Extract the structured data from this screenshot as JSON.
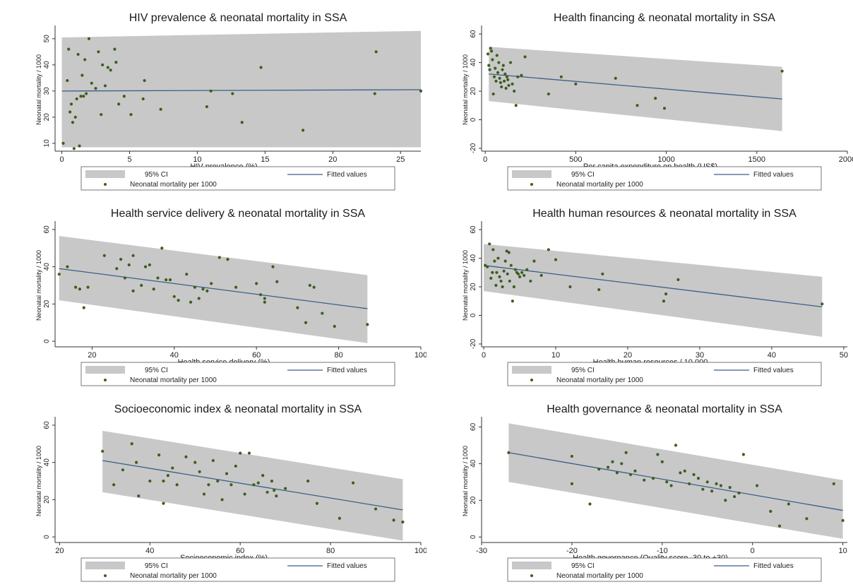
{
  "colors": {
    "ci_band": "#c8c8c8",
    "fit_line": "#3a5f86",
    "points": "#3d5e1e",
    "axis": "#333333"
  },
  "legend": {
    "ci": "95% CI",
    "fit": "Fitted values",
    "points": "Neonatal mortality per 1000"
  },
  "chart_data": [
    {
      "type": "scatter",
      "title": "HIV prevalence & neonatal mortality in SSA",
      "xlabel": "HIV prevalence (%)",
      "ylabel": "Neonatal mortality / 1000",
      "xlim": [
        -0.5,
        26.5
      ],
      "ylim": [
        7,
        54
      ],
      "xticks": [
        0,
        5,
        10,
        15,
        20,
        25
      ],
      "yticks": [
        10,
        20,
        30,
        40,
        50
      ],
      "ci_band": {
        "x": [
          0,
          26.5
        ],
        "lower": [
          8.5,
          8.5
        ],
        "upper": [
          50.5,
          53
        ]
      },
      "fit": {
        "x": [
          0,
          26.5
        ],
        "y": [
          30,
          30.5
        ]
      },
      "points": [
        [
          0.1,
          10
        ],
        [
          0.4,
          34
        ],
        [
          0.5,
          46
        ],
        [
          0.6,
          22
        ],
        [
          0.7,
          25
        ],
        [
          0.8,
          18
        ],
        [
          0.9,
          8
        ],
        [
          1,
          20
        ],
        [
          1.1,
          27
        ],
        [
          1.2,
          44
        ],
        [
          1.3,
          9
        ],
        [
          1.4,
          28
        ],
        [
          1.5,
          36
        ],
        [
          1.6,
          28
        ],
        [
          1.8,
          29
        ],
        [
          1.7,
          42
        ],
        [
          2,
          50
        ],
        [
          2.2,
          33
        ],
        [
          2.5,
          31
        ],
        [
          2.7,
          45
        ],
        [
          2.9,
          21
        ],
        [
          3,
          40
        ],
        [
          3.2,
          32
        ],
        [
          3.4,
          39
        ],
        [
          3.6,
          38
        ],
        [
          3.9,
          46
        ],
        [
          4,
          41
        ],
        [
          4.2,
          25
        ],
        [
          4.6,
          28
        ],
        [
          5.1,
          21
        ],
        [
          6.1,
          34
        ],
        [
          6,
          27
        ],
        [
          7.3,
          23
        ],
        [
          10.7,
          24
        ],
        [
          11,
          30
        ],
        [
          12.6,
          29
        ],
        [
          13.3,
          18
        ],
        [
          14.7,
          39
        ],
        [
          17.8,
          15
        ],
        [
          23.2,
          45
        ],
        [
          23.1,
          29
        ],
        [
          26.5,
          30
        ]
      ]
    },
    {
      "type": "scatter",
      "title": "Health financing & neonatal mortality in SSA",
      "xlabel": "Per capita expenditure on health (US$)",
      "ylabel": "Neonatal mortality / 1000",
      "xlim": [
        -20,
        2000
      ],
      "ylim": [
        -22,
        64
      ],
      "xticks": [
        0,
        500,
        1000,
        1500,
        2000
      ],
      "yticks": [
        -20,
        0,
        20,
        40,
        60
      ],
      "ci_band": {
        "x": [
          20,
          1640
        ],
        "lower": [
          13,
          -8
        ],
        "upper": [
          51,
          37
        ]
      },
      "fit": {
        "x": [
          20,
          1640
        ],
        "y": [
          32,
          14.5
        ]
      },
      "points": [
        [
          15,
          46
        ],
        [
          20,
          38
        ],
        [
          25,
          35
        ],
        [
          30,
          50
        ],
        [
          35,
          48
        ],
        [
          40,
          42
        ],
        [
          45,
          18
        ],
        [
          50,
          30
        ],
        [
          55,
          36
        ],
        [
          60,
          27
        ],
        [
          65,
          45
        ],
        [
          70,
          33
        ],
        [
          75,
          40
        ],
        [
          80,
          29
        ],
        [
          85,
          26
        ],
        [
          90,
          23
        ],
        [
          95,
          35
        ],
        [
          100,
          38
        ],
        [
          105,
          27
        ],
        [
          110,
          32
        ],
        [
          115,
          22
        ],
        [
          120,
          30
        ],
        [
          125,
          28
        ],
        [
          130,
          24
        ],
        [
          140,
          40
        ],
        [
          150,
          25
        ],
        [
          160,
          20
        ],
        [
          170,
          10
        ],
        [
          180,
          30
        ],
        [
          200,
          31
        ],
        [
          220,
          44
        ],
        [
          350,
          18
        ],
        [
          420,
          30
        ],
        [
          500,
          25
        ],
        [
          720,
          29
        ],
        [
          840,
          10
        ],
        [
          940,
          15
        ],
        [
          990,
          8
        ],
        [
          1640,
          34
        ]
      ]
    },
    {
      "type": "scatter",
      "title": "Health service delivery & neonatal mortality in SSA",
      "xlabel": "Health service delivery (%)",
      "ylabel": "Neonatal mortality / 1000",
      "xlim": [
        11,
        100
      ],
      "ylim": [
        -3,
        63
      ],
      "xticks": [
        20,
        40,
        60,
        80,
        100
      ],
      "yticks": [
        0,
        20,
        40,
        60
      ],
      "ci_band": {
        "x": [
          12,
          87
        ],
        "lower": [
          22,
          -1
        ],
        "upper": [
          56.5,
          35.5
        ]
      },
      "fit": {
        "x": [
          12,
          87
        ],
        "y": [
          39,
          17.5
        ]
      },
      "points": [
        [
          12,
          36
        ],
        [
          14,
          40
        ],
        [
          16,
          29
        ],
        [
          17,
          28
        ],
        [
          18,
          18
        ],
        [
          19,
          29
        ],
        [
          23,
          46
        ],
        [
          26,
          39
        ],
        [
          27,
          44
        ],
        [
          28,
          34
        ],
        [
          29,
          41
        ],
        [
          30,
          27
        ],
        [
          30,
          46
        ],
        [
          32,
          30
        ],
        [
          33,
          40
        ],
        [
          34,
          41
        ],
        [
          35,
          28
        ],
        [
          36,
          34
        ],
        [
          37,
          50
        ],
        [
          38,
          33
        ],
        [
          39,
          33
        ],
        [
          40,
          24
        ],
        [
          41,
          22
        ],
        [
          43,
          36
        ],
        [
          44,
          21
        ],
        [
          45,
          29
        ],
        [
          46,
          23
        ],
        [
          47,
          28
        ],
        [
          48,
          27
        ],
        [
          49,
          31
        ],
        [
          51,
          45
        ],
        [
          53,
          44
        ],
        [
          55,
          29
        ],
        [
          60,
          31
        ],
        [
          61,
          25
        ],
        [
          62,
          23
        ],
        [
          62,
          21
        ],
        [
          64,
          40
        ],
        [
          65,
          32
        ],
        [
          70,
          18
        ],
        [
          72,
          10
        ],
        [
          73,
          30
        ],
        [
          74,
          29
        ],
        [
          76,
          15
        ],
        [
          79,
          8
        ],
        [
          87,
          9
        ]
      ]
    },
    {
      "type": "scatter",
      "title": "Health human resources & neonatal mortality in SSA",
      "xlabel": "Health human resources / 10,000",
      "ylabel": "Neonatal mortality / 1000",
      "xlim": [
        -0.3,
        50.5
      ],
      "ylim": [
        -22,
        64
      ],
      "xticks": [
        0,
        10,
        20,
        30,
        40,
        50
      ],
      "yticks": [
        -20,
        0,
        20,
        40,
        60
      ],
      "ci_band": {
        "x": [
          0,
          47
        ],
        "lower": [
          17,
          -15
        ],
        "upper": [
          50,
          27
        ]
      },
      "fit": {
        "x": [
          0,
          47
        ],
        "y": [
          35,
          6
        ]
      },
      "points": [
        [
          0.2,
          35
        ],
        [
          0.5,
          34
        ],
        [
          0.8,
          50
        ],
        [
          1,
          26
        ],
        [
          1.2,
          30
        ],
        [
          1.3,
          46
        ],
        [
          1.5,
          38
        ],
        [
          1.7,
          21
        ],
        [
          1.8,
          30
        ],
        [
          2,
          40
        ],
        [
          2.2,
          27
        ],
        [
          2.4,
          24
        ],
        [
          2.6,
          20
        ],
        [
          2.8,
          31
        ],
        [
          3,
          38
        ],
        [
          3.2,
          45
        ],
        [
          3.3,
          29
        ],
        [
          3.5,
          44
        ],
        [
          3.6,
          24
        ],
        [
          3.8,
          35
        ],
        [
          4,
          10
        ],
        [
          4.2,
          20
        ],
        [
          4.4,
          32
        ],
        [
          4.6,
          30
        ],
        [
          4.8,
          29
        ],
        [
          5,
          27
        ],
        [
          5.3,
          30
        ],
        [
          5.6,
          28
        ],
        [
          6,
          32
        ],
        [
          6.5,
          24
        ],
        [
          7,
          38
        ],
        [
          8,
          28
        ],
        [
          9,
          46
        ],
        [
          10,
          39
        ],
        [
          12,
          20
        ],
        [
          16,
          18
        ],
        [
          16.5,
          29
        ],
        [
          25,
          10
        ],
        [
          25.3,
          15
        ],
        [
          27,
          25
        ],
        [
          47,
          8
        ]
      ]
    },
    {
      "type": "scatter",
      "title": "Socioeconomic index & neonatal mortality in SSA",
      "xlabel": "Socioeconomic index (%)",
      "ylabel": "Neonatal mortality / 1000",
      "xlim": [
        19,
        100
      ],
      "ylim": [
        -3,
        63
      ],
      "xticks": [
        20,
        40,
        60,
        80,
        100
      ],
      "yticks": [
        0,
        20,
        40,
        60
      ],
      "ci_band": {
        "x": [
          29.5,
          96
        ],
        "lower": [
          24,
          -2
        ],
        "upper": [
          57,
          31
        ]
      },
      "fit": {
        "x": [
          29.5,
          96
        ],
        "y": [
          41,
          14.5
        ]
      },
      "points": [
        [
          29.5,
          46
        ],
        [
          32,
          28
        ],
        [
          34,
          36
        ],
        [
          36,
          50
        ],
        [
          37,
          40
        ],
        [
          37.5,
          22
        ],
        [
          40,
          30
        ],
        [
          42,
          44
        ],
        [
          43,
          18
        ],
        [
          43,
          30
        ],
        [
          44,
          33
        ],
        [
          45,
          37
        ],
        [
          46,
          28
        ],
        [
          48,
          43
        ],
        [
          50,
          40
        ],
        [
          51,
          35
        ],
        [
          52,
          23
        ],
        [
          53,
          28
        ],
        [
          54,
          41
        ],
        [
          55,
          30
        ],
        [
          56,
          20
        ],
        [
          57,
          34
        ],
        [
          58,
          28
        ],
        [
          59,
          38
        ],
        [
          60,
          45
        ],
        [
          61,
          23
        ],
        [
          62,
          45
        ],
        [
          63,
          28
        ],
        [
          64,
          29
        ],
        [
          65,
          33
        ],
        [
          66,
          24
        ],
        [
          67,
          30
        ],
        [
          67.5,
          25
        ],
        [
          68,
          22
        ],
        [
          70,
          26
        ],
        [
          75,
          30
        ],
        [
          77,
          18
        ],
        [
          82,
          10
        ],
        [
          85,
          29
        ],
        [
          90,
          15
        ],
        [
          94,
          9
        ],
        [
          96,
          8
        ]
      ]
    },
    {
      "type": "scatter",
      "title": "Health governance & neonatal mortality in SSA",
      "xlabel": "Health governance (Quality score -30 to +30)",
      "ylabel": "Neonatal mortality / 1000",
      "xlim": [
        -30,
        10.5
      ],
      "ylim": [
        -3,
        64
      ],
      "xticks": [
        -30,
        -20,
        -10,
        0,
        10
      ],
      "yticks": [
        0,
        20,
        40,
        60
      ],
      "ci_band": {
        "x": [
          -27,
          10
        ],
        "lower": [
          30,
          -1
        ],
        "upper": [
          62,
          31
        ]
      },
      "fit": {
        "x": [
          -27,
          10
        ],
        "y": [
          46,
          14.5
        ]
      },
      "points": [
        [
          -27,
          46
        ],
        [
          -20,
          44
        ],
        [
          -20,
          29
        ],
        [
          -18,
          18
        ],
        [
          -17,
          37
        ],
        [
          -16,
          38
        ],
        [
          -15.5,
          41
        ],
        [
          -15,
          35
        ],
        [
          -14.5,
          40
        ],
        [
          -14,
          46
        ],
        [
          -13.5,
          34
        ],
        [
          -13,
          36
        ],
        [
          -12,
          31
        ],
        [
          -11,
          32
        ],
        [
          -10.5,
          45
        ],
        [
          -10,
          41
        ],
        [
          -9.5,
          30
        ],
        [
          -9,
          28
        ],
        [
          -8.5,
          50
        ],
        [
          -8,
          35
        ],
        [
          -7.5,
          36
        ],
        [
          -7,
          29
        ],
        [
          -6.5,
          34
        ],
        [
          -6,
          32
        ],
        [
          -5.5,
          26
        ],
        [
          -5,
          30
        ],
        [
          -4.5,
          25
        ],
        [
          -4,
          29
        ],
        [
          -3.5,
          28
        ],
        [
          -3,
          20
        ],
        [
          -2.5,
          27
        ],
        [
          -2,
          22
        ],
        [
          -1.5,
          24
        ],
        [
          -1,
          45
        ],
        [
          0.5,
          28
        ],
        [
          2,
          14
        ],
        [
          3,
          6
        ],
        [
          4,
          18
        ],
        [
          6,
          10
        ],
        [
          9,
          29
        ],
        [
          10,
          9
        ]
      ]
    }
  ]
}
